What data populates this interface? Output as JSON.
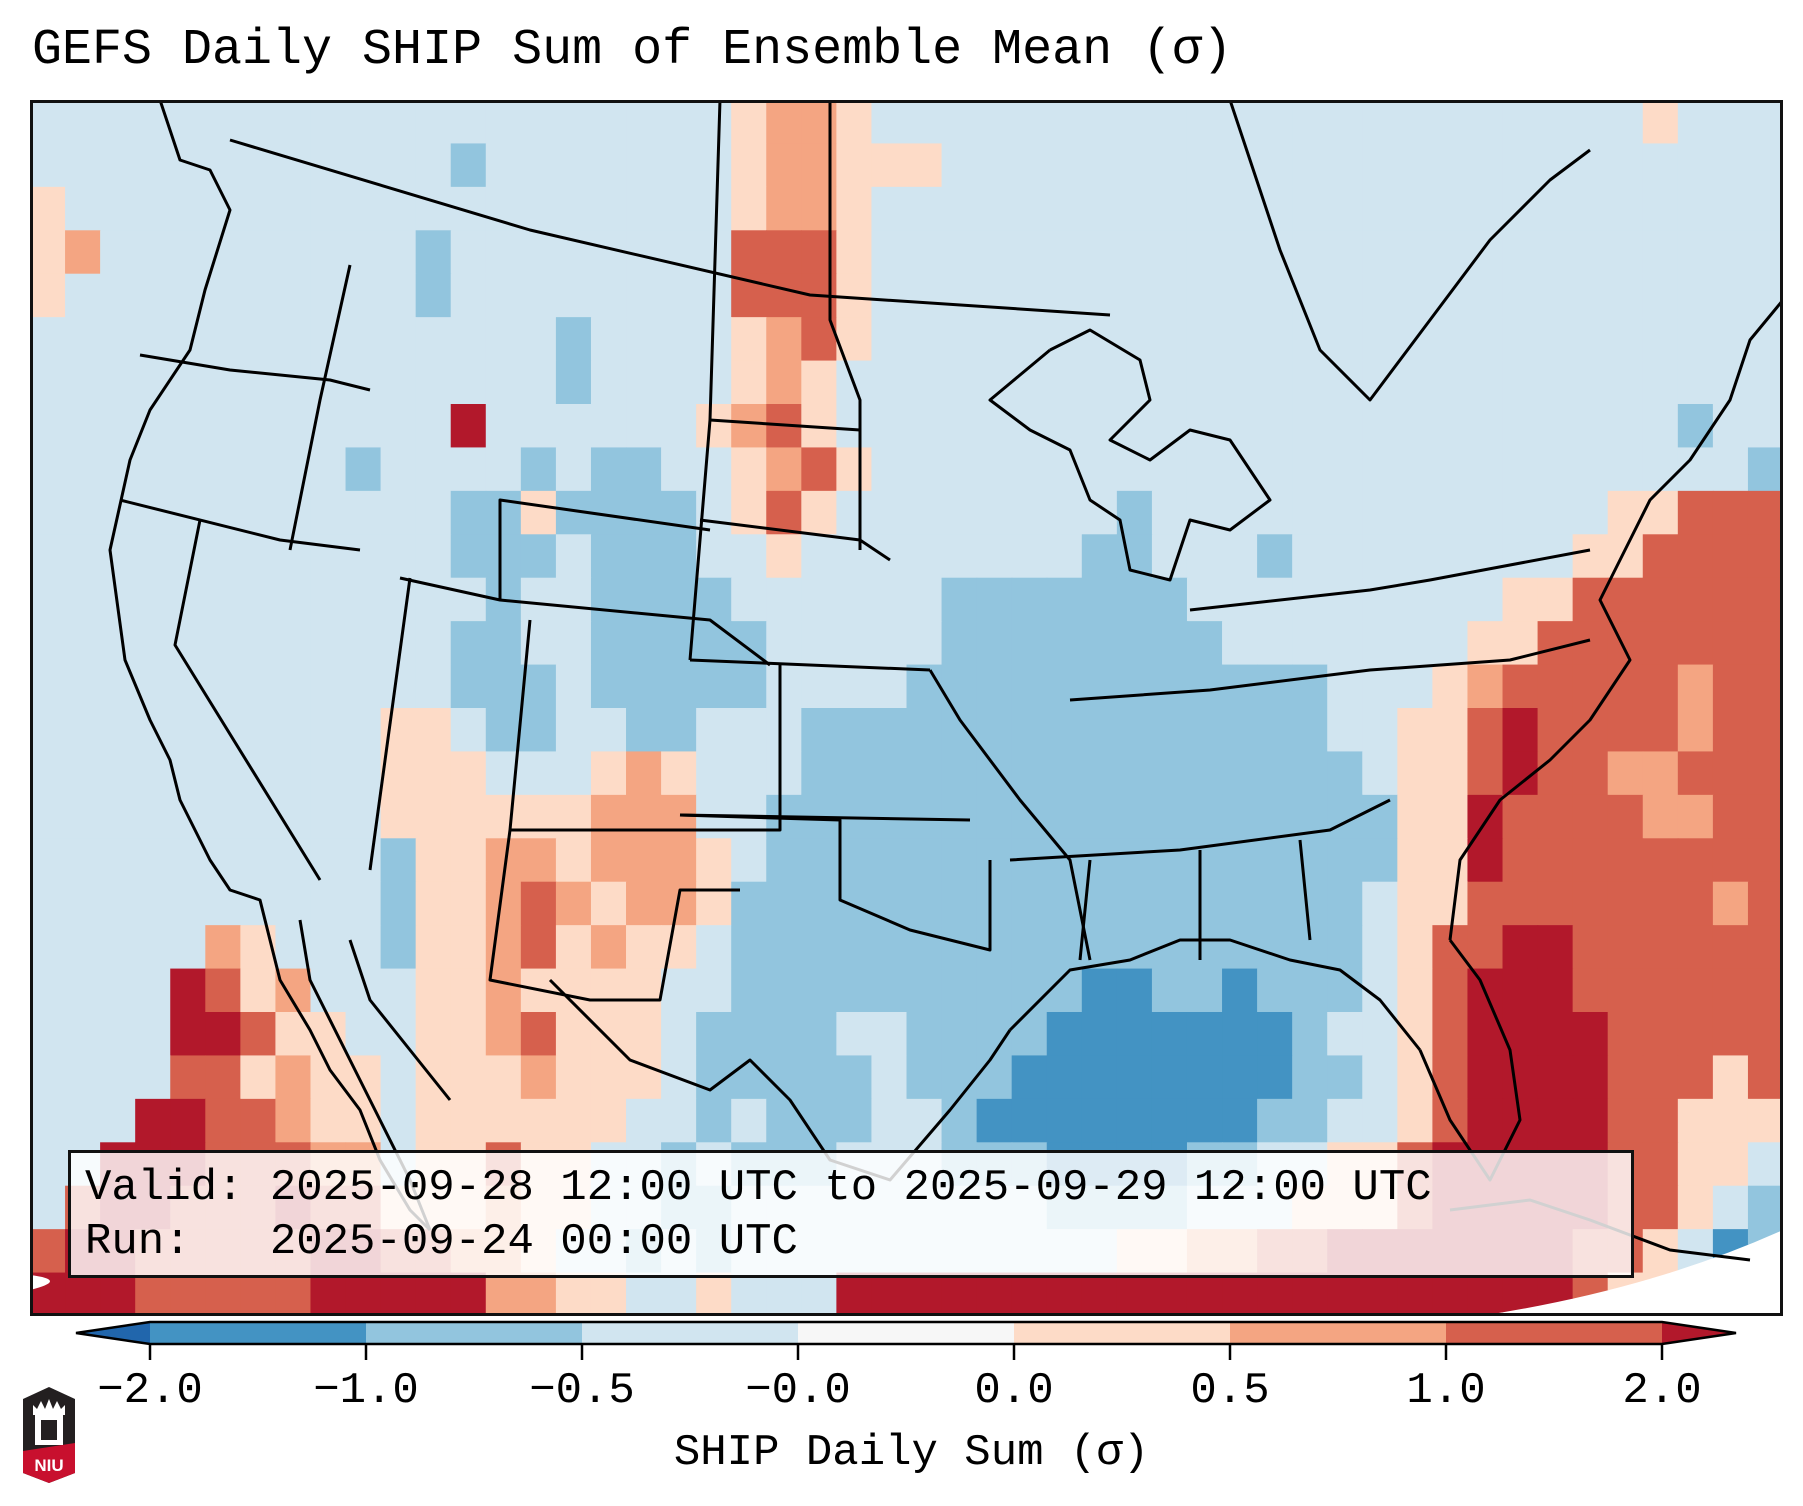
{
  "title": "GEFS Daily SHIP Sum of Ensemble Mean (σ)",
  "info": {
    "valid_label": "Valid:",
    "valid_value": "2025-09-28 12:00 UTC to 2025-09-29 12:00 UTC",
    "run_label": "Run:",
    "run_value": "2025-09-24 00:00 UTC"
  },
  "logo": {
    "text": "NIU",
    "primary": "#231f20",
    "accent": "#c8102e"
  },
  "chart_data": {
    "type": "heatmap",
    "title": "GEFS Daily SHIP Sum of Ensemble Mean (σ)",
    "colorbar": {
      "label": "SHIP Daily Sum (σ)",
      "orientation": "horizontal",
      "placement": "bottom",
      "extend": "both",
      "boundaries": [
        -2.0,
        -1.0,
        -0.5,
        -0.0,
        0.0,
        0.5,
        1.0,
        2.0
      ],
      "tick_labels": [
        "−2.0",
        "−1.0",
        "−0.5",
        "−0.0",
        "0.0",
        "0.5",
        "1.0",
        "2.0"
      ],
      "bins": [
        {
          "key": "U",
          "range": "< -2.0",
          "color": "#2166ac"
        },
        {
          "key": "D",
          "range": "-2.0 to -1.0",
          "color": "#4393c3"
        },
        {
          "key": "M",
          "range": "-1.0 to -0.5",
          "color": "#92c5de"
        },
        {
          "key": "L",
          "range": "-0.5 to -0.0",
          "color": "#d1e5f0"
        },
        {
          "key": "W",
          "range": "-0.0 to 0.0",
          "color": "#f7f7f7"
        },
        {
          "key": "p",
          "range": "0.0 to 0.5",
          "color": "#fddbc7"
        },
        {
          "key": "o",
          "range": "0.5 to 1.0",
          "color": "#f4a582"
        },
        {
          "key": "r",
          "range": "1.0 to 2.0",
          "color": "#d6604d"
        },
        {
          "key": "R",
          "range": "> 2.0",
          "color": "#b2182b"
        }
      ]
    },
    "domain": "Contiguous United States, southern Canada, northern Mexico, Gulf of Mexico, western Atlantic",
    "grid_description": "coarse binned field, rows north to south, columns west to east",
    "grid": [
      "LLLLLLLLLLLLLLLLLLLLpoopLLLLLLLLLLLLLLLLLLLLLLpLLL",
      "LLLLLLLLLLLLMLLLLLLLpoopppLLLLLLLLLLLLLLLLLLLLLLLL",
      "pLLLLLLLLLLLLLLLLLLLpoopLLLLLLLLLLLLLLLLLLLLLLLLLL",
      "poLLLLLLLLLMLLLLLLLLrrrpLLLLLLLLLLLLLLLLLLLLLLLLLL",
      "pLLLLLLLLLLMLLLLLLLLrrrpLLLLLLLLLLLLLLLLLLLLLLLLLL",
      "LLLLLLLLLLLLLLLMLLLLporpLLLLLLLLLLLLLLLLLLLLLLLLLL",
      "LLLLLLLLLLLLLLLMLLLLpopLLLLLLLLLLLLLLLLLLLLLLLLLLL",
      "LLLLLLLLLLLLRLLLLLLporpLLLLLLLLLLLLLLLLLLLLLLLLMLL",
      "LLLLLLLLLMLLLLMLMMLLporpLLLLLLLLLLLLLLLLLLLLLLLLLM",
      "LLLLLLLLLLLLMMpMMMMLprpLLLLLLLLMLLLLLLLLLLLLLpprrr",
      "LLLLLLLLLLLLMMMLMMMLLpLLLLLLLLMMLLLMLLLLLLLLpprrrr",
      "LLLLLLLLLLLLLMLLMMMMLLLLLLMMMMMMMLLLLLLLLLpprrrrrr",
      "LLLLLLLLLLLLMMLLMMMMMLLLLLMMMMMMMMLLLLLLLpprrrrrrr",
      "LLLLLLLLLLLLMMMLMMMMMLLLLMMMMMMMMMMMMLLLporrrrrorr",
      "LLLLLLLLLLppLMMLLMMLLLMMMMMMMMMMMMMMMLLpprRrrrrorr",
      "LLLLLLLLLLpppLLLpopLLLMMMMMMMMMMMMMMMMLpprRrroorrr",
      "LLLLLLLLLLppppppoooLLMMMMMMMMMMMMMMMMMMppRrrrroorr",
      "LLLLLLLLLLMppoopooopLMMMMMMMMMMMMMMMMMMppRrrrrrrrr",
      "LLLLLLLLLLMpporopoopMMMMMMMMMMMMMMMMMMLpprrrrrrror",
      "LLLLLopLLLMpporpoppLMMMMMMMMMMMMMMMMMMLprrRRrrrrrr",
      "LLLLRrpoLLLppoppppLLMMMMMMMMMMDDMMDMMMLprRRRrrrrrr",
      "LLLLRRrppLLpporpppLMMMMLLMMMMDDDDDDDMLLprRRRRrrrrr",
      "LLLLrrpoppLpppopppLMMMMMLMMMDDDDDDDDMMLprRRRRrrrpr",
      "LLLRRrroppLppppppLLMLMMMLLMDDDDDDDDMMLLprRRRRrrppp",
      "LLRRRrrrooLpprppLLMLMMMLLLMMMDDDDMMLLpprRRRRRrrppL",
      "LrRRrrrRrrpppoppLLMMLLLLLLLLLMMMMLLLppprRRRRRrrpLM",
      "rRRrrrrrRRrroopLLMLMLLLLLLLLLLLppoorrRRRRRRRrrpLDM",
      "RRRrrrrrRRRRRooppLLpLLLRRRRRRRRRRRRRRRRRRRRRrppMDL"
    ]
  }
}
